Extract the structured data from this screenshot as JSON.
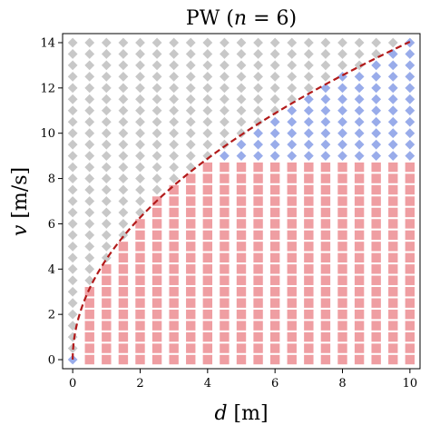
{
  "chart_data": {
    "type": "scatter",
    "title": "PW (n = 6)",
    "title_parts": {
      "prefix": "PW (",
      "var": "n",
      "eq": " = ",
      "num": "6",
      "suffix": ")"
    },
    "xlabel": "d [m]",
    "xlabel_parts": {
      "var": "d",
      "unit": " [m]"
    },
    "ylabel": "v [m/s]",
    "ylabel_parts": {
      "var": "v",
      "unit": " [m/s]"
    },
    "xlim": [
      -0.3,
      10.3
    ],
    "ylim": [
      -0.4,
      14.4
    ],
    "xticks": [
      "0",
      "2",
      "4",
      "6",
      "8",
      "10"
    ],
    "yticks": [
      "0",
      "2",
      "4",
      "6",
      "8",
      "10",
      "12",
      "14"
    ],
    "grid": false,
    "grid_spec": {
      "x_start": 0,
      "x_step": 0.5,
      "x_count": 21,
      "y_start": 0,
      "y_step": 0.5,
      "y_count": 29
    },
    "classification": {
      "boundary_coefficient": 4.44,
      "v_max_square": 8.7,
      "x_min_square": 0.1
    },
    "series": [
      {
        "color": "#ef9ea2",
        "marker": "square"
      },
      {
        "color": "#99acea",
        "marker": "diamond"
      },
      {
        "color": "#c8c8c8",
        "marker": "diamond"
      }
    ],
    "curve": {
      "style": "dashed",
      "color": "#b21a1a",
      "function": "v = 4.44 * sqrt(d)",
      "x_range": [
        0,
        10
      ]
    }
  }
}
